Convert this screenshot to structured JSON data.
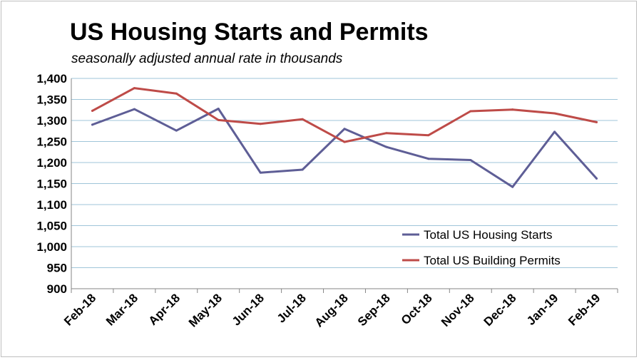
{
  "chart_data": {
    "type": "line",
    "title": "US Housing Starts and Permits",
    "subtitle": "seasonally adjusted annual rate in thousands",
    "xlabel": "",
    "ylabel": "",
    "categories": [
      "Feb-18",
      "Mar-18",
      "Apr-18",
      "May-18",
      "Jun-18",
      "Jul-18",
      "Aug-18",
      "Sep-18",
      "Oct-18",
      "Nov-18",
      "Dec-18",
      "Jan-19",
      "Feb-19"
    ],
    "ylim": [
      900,
      1400
    ],
    "yticks": [
      900,
      950,
      1000,
      1050,
      1100,
      1150,
      1200,
      1250,
      1300,
      1350,
      1400
    ],
    "ytick_labels": [
      "900",
      "950",
      "1,000",
      "1,050",
      "1,100",
      "1,150",
      "1,200",
      "1,250",
      "1,300",
      "1,350",
      "1,400"
    ],
    "grid": true,
    "legend_position": "bottom-right",
    "series": [
      {
        "name": "Total US Housing Starts",
        "color": "#5e5e96",
        "values": [
          1290,
          1327,
          1276,
          1328,
          1176,
          1183,
          1280,
          1237,
          1209,
          1206,
          1142,
          1273,
          1162
        ]
      },
      {
        "name": "Total US Building Permits",
        "color": "#be4b48",
        "values": [
          1323,
          1377,
          1364,
          1301,
          1292,
          1303,
          1249,
          1270,
          1265,
          1322,
          1326,
          1317,
          1296
        ]
      }
    ]
  }
}
